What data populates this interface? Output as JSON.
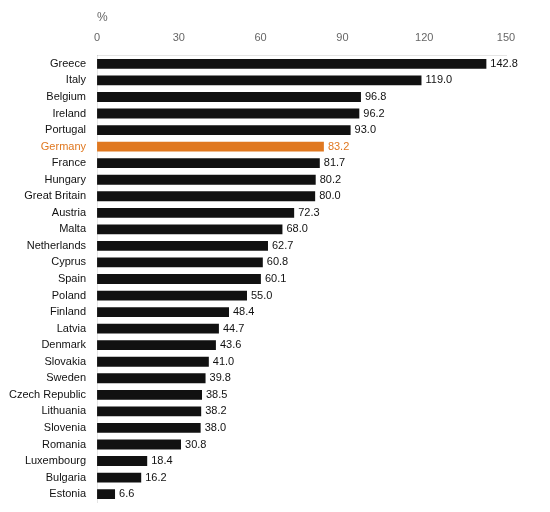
{
  "chart_data": {
    "type": "bar",
    "orientation": "horizontal",
    "xlabel": "%",
    "categories": [
      "Greece",
      "Italy",
      "Belgium",
      "Ireland",
      "Portugal",
      "Germany",
      "France",
      "Hungary",
      "Great Britain",
      "Austria",
      "Malta",
      "Netherlands",
      "Cyprus",
      "Spain",
      "Poland",
      "Finland",
      "Latvia",
      "Denmark",
      "Slovakia",
      "Sweden",
      "Czech Republic",
      "Lithuania",
      "Slovenia",
      "Romania",
      "Luxembourg",
      "Bulgaria",
      "Estonia"
    ],
    "values": [
      142.8,
      119.0,
      96.8,
      96.2,
      93.0,
      83.2,
      81.7,
      80.2,
      80.0,
      72.3,
      68.0,
      62.7,
      60.8,
      60.1,
      55.0,
      48.4,
      44.7,
      43.6,
      41.0,
      39.8,
      38.5,
      38.2,
      38.0,
      30.8,
      18.4,
      16.2,
      6.6
    ],
    "value_labels": [
      "142.8",
      "119.0",
      "96.8",
      "96.2",
      "93.0",
      "83.2",
      "81.7",
      "80.2",
      "80.0",
      "72.3",
      "68.0",
      "62.7",
      "60.8",
      "60.1",
      "55.0",
      "48.4",
      "44.7",
      "43.6",
      "41.0",
      "39.8",
      "38.5",
      "38.2",
      "38.0",
      "30.8",
      "18.4",
      "16.2",
      "6.6"
    ],
    "colors": [
      "#111111",
      "#111111",
      "#111111",
      "#111111",
      "#111111",
      "#e07820",
      "#111111",
      "#111111",
      "#111111",
      "#111111",
      "#111111",
      "#111111",
      "#111111",
      "#111111",
      "#111111",
      "#111111",
      "#111111",
      "#111111",
      "#111111",
      "#111111",
      "#111111",
      "#111111",
      "#111111",
      "#111111",
      "#111111",
      "#111111",
      "#111111"
    ],
    "xlim": [
      0,
      150
    ],
    "xticks": [
      0,
      30,
      60,
      90,
      120,
      150
    ],
    "data_labels": true,
    "grid": false
  }
}
